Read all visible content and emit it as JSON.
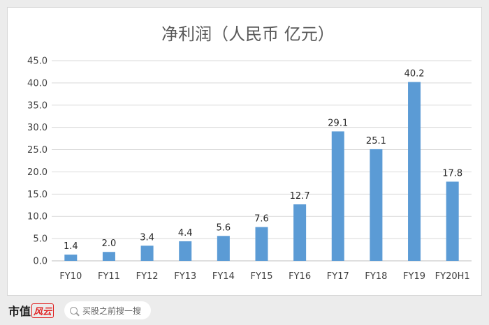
{
  "chart_data": {
    "type": "bar",
    "title": "净利润（人民币 亿元）",
    "categories": [
      "FY10",
      "FY11",
      "FY12",
      "FY13",
      "FY14",
      "FY15",
      "FY16",
      "FY17",
      "FY18",
      "FY19",
      "FY20H1"
    ],
    "values": [
      1.4,
      2.0,
      3.4,
      4.4,
      5.6,
      7.6,
      12.7,
      29.1,
      25.1,
      40.2,
      17.8
    ],
    "data_labels": [
      "1.4",
      "2.0",
      "3.4",
      "4.4",
      "5.6",
      "7.6",
      "12.7",
      "29.1",
      "25.1",
      "40.2",
      "17.8"
    ],
    "ylim": [
      0,
      45
    ],
    "yticks": [
      "0.0",
      "5.0",
      "10.0",
      "15.0",
      "20.0",
      "25.0",
      "30.0",
      "35.0",
      "40.0",
      "45.0"
    ],
    "ytick_values": [
      0,
      5,
      10,
      15,
      20,
      25,
      30,
      35,
      40,
      45
    ],
    "grid": true,
    "bar_color": "#5b9bd5",
    "legend": "none"
  },
  "footer": {
    "brand_main": "市值",
    "brand_accent": "风云",
    "search_label": "买股之前搜一搜",
    "search_icon": "search-icon"
  }
}
